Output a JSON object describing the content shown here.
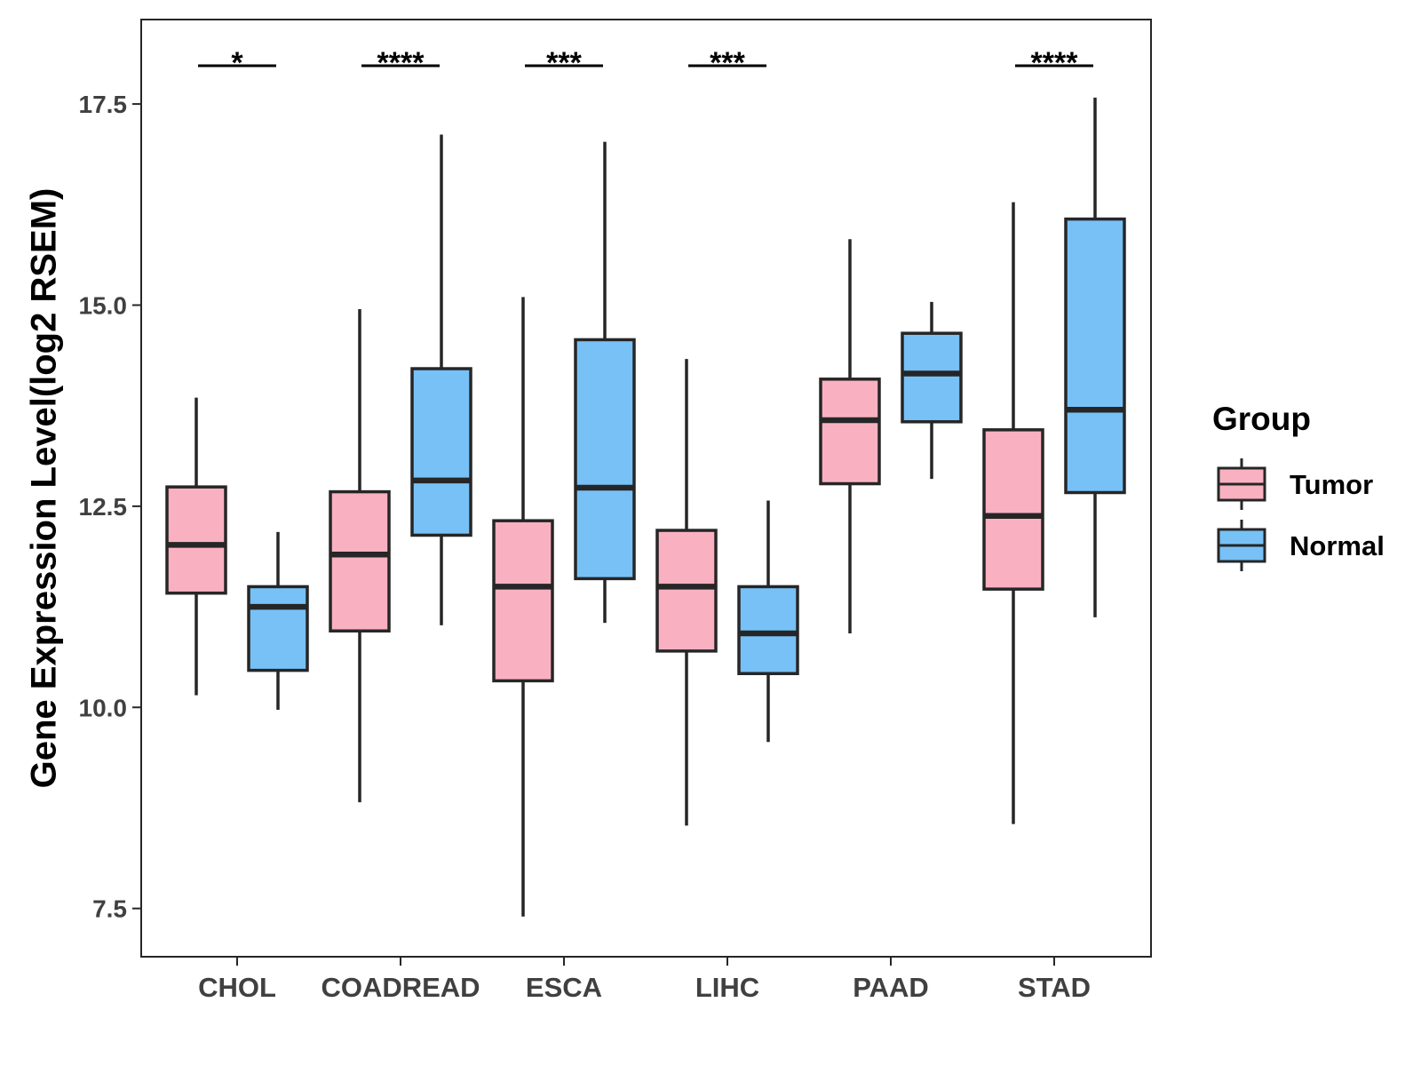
{
  "chart_data": {
    "type": "boxplot",
    "title": "",
    "xlabel": "",
    "ylabel": "Gene Expression Level(log2 RSEM)",
    "ylim": [
      6.9,
      18.55
    ],
    "yticks": [
      7.5,
      10.0,
      12.5,
      15.0,
      17.5
    ],
    "ytick_labels": [
      "7.5",
      "10.0",
      "12.5",
      "15.0",
      "17.5"
    ],
    "categories": [
      "CHOL",
      "COADREAD",
      "ESCA",
      "LIHC",
      "PAAD",
      "STAD"
    ],
    "legend": {
      "title": "Group",
      "position": "right",
      "entries": [
        "Tumor",
        "Normal"
      ]
    },
    "colors": {
      "Tumor": "#F9B1C1",
      "Normal": "#77C1F7",
      "outline": "#262626"
    },
    "series": [
      {
        "name": "Tumor",
        "boxes": [
          {
            "min": 10.15,
            "q1": 11.42,
            "median": 12.02,
            "q3": 12.74,
            "max": 13.85
          },
          {
            "min": 8.82,
            "q1": 10.95,
            "median": 11.9,
            "q3": 12.68,
            "max": 14.95
          },
          {
            "min": 7.4,
            "q1": 10.33,
            "median": 11.5,
            "q3": 12.32,
            "max": 15.1
          },
          {
            "min": 8.53,
            "q1": 10.7,
            "median": 11.5,
            "q3": 12.2,
            "max": 14.33
          },
          {
            "min": 10.92,
            "q1": 12.78,
            "median": 13.57,
            "q3": 14.08,
            "max": 15.82
          },
          {
            "min": 8.55,
            "q1": 11.47,
            "median": 12.38,
            "q3": 13.45,
            "max": 16.28
          }
        ]
      },
      {
        "name": "Normal",
        "boxes": [
          {
            "min": 9.97,
            "q1": 10.46,
            "median": 11.25,
            "q3": 11.5,
            "max": 12.18
          },
          {
            "min": 11.02,
            "q1": 12.14,
            "median": 12.82,
            "q3": 14.21,
            "max": 17.12
          },
          {
            "min": 11.05,
            "q1": 11.6,
            "median": 12.73,
            "q3": 14.57,
            "max": 17.03
          },
          {
            "min": 9.57,
            "q1": 10.42,
            "median": 10.92,
            "q3": 11.5,
            "max": 12.57
          },
          {
            "min": 12.84,
            "q1": 13.55,
            "median": 14.15,
            "q3": 14.65,
            "max": 15.04
          },
          {
            "min": 11.12,
            "q1": 12.67,
            "median": 13.7,
            "q3": 16.07,
            "max": 17.58
          }
        ]
      }
    ],
    "annotations": [
      {
        "category": "CHOL",
        "label": "*"
      },
      {
        "category": "COADREAD",
        "label": "****"
      },
      {
        "category": "ESCA",
        "label": "***"
      },
      {
        "category": "LIHC",
        "label": "***"
      },
      {
        "category": "STAD",
        "label": "****"
      }
    ]
  }
}
